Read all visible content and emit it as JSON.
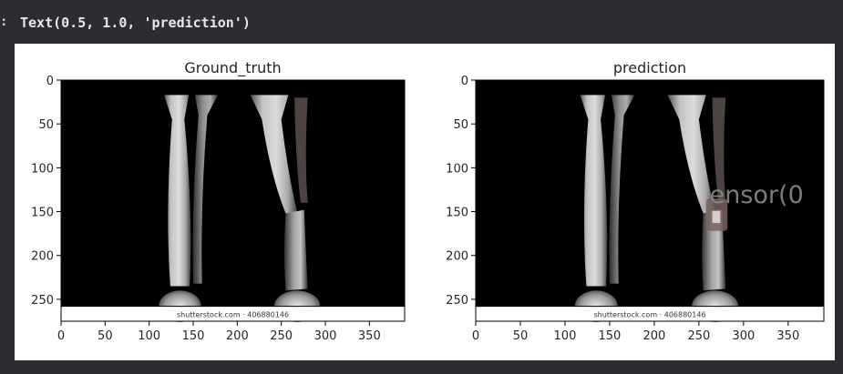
{
  "cell_output": {
    "prompt": ":",
    "text": "Text(0.5, 1.0, 'prediction')"
  },
  "figure": {
    "panels": [
      {
        "title": "Ground_truth",
        "x_ticks": [
          "0",
          "50",
          "100",
          "150",
          "200",
          "250",
          "300",
          "350"
        ],
        "y_ticks": [
          "0",
          "50",
          "100",
          "150",
          "200",
          "250"
        ],
        "watermark": "shutterstock.com · 406880146",
        "overlay_text": ""
      },
      {
        "title": "prediction",
        "x_ticks": [
          "0",
          "50",
          "100",
          "150",
          "200",
          "250",
          "300",
          "350"
        ],
        "y_ticks": [
          "0",
          "50",
          "100",
          "150",
          "200",
          "250"
        ],
        "watermark": "shutterstock.com · 406880146",
        "overlay_text": "ensor(0"
      }
    ],
    "x_range": [
      0,
      390
    ],
    "y_range": [
      0,
      275
    ],
    "x_tick_values": [
      0,
      50,
      100,
      150,
      200,
      250,
      300,
      350
    ],
    "y_tick_values": [
      0,
      50,
      100,
      150,
      200,
      250
    ],
    "banner_start_y": 258,
    "prediction_mask": {
      "x": [
        258,
        282
      ],
      "y": [
        135,
        172
      ]
    }
  }
}
